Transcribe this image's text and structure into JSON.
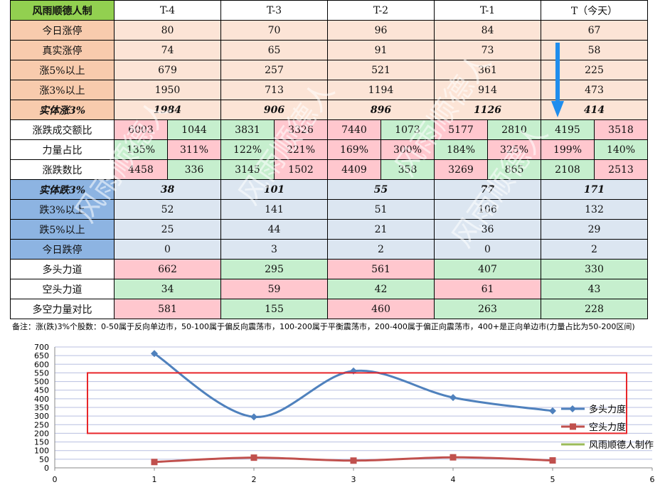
{
  "table": {
    "corner": "风雨顺德人制",
    "headers": [
      "T-4",
      "T-3",
      "T-2",
      "T-1",
      "T（今天）"
    ],
    "up_rows": [
      {
        "label": "今日涨停",
        "values": [
          "80",
          "70",
          "96",
          "84",
          "67"
        ]
      },
      {
        "label": "真实涨停",
        "values": [
          "74",
          "65",
          "91",
          "73",
          "58"
        ]
      },
      {
        "label": "涨5%以上",
        "values": [
          "679",
          "257",
          "521",
          "361",
          "225"
        ]
      },
      {
        "label": "涨3%以上",
        "values": [
          "1950",
          "713",
          "1194",
          "914",
          "473"
        ]
      }
    ],
    "solid_up": {
      "label": "实体涨3%",
      "values": [
        "1984",
        "906",
        "896",
        "1126",
        "414"
      ]
    },
    "pair_rows": [
      {
        "label": "涨跌成交额比",
        "values": [
          [
            "6003",
            "1044"
          ],
          [
            "3831",
            "3326"
          ],
          [
            "7440",
            "1073"
          ],
          [
            "5177",
            "2810"
          ],
          [
            "4195",
            "3518"
          ]
        ]
      },
      {
        "label": "力量占比",
        "values": [
          [
            "135%",
            "311%"
          ],
          [
            "122%",
            "221%"
          ],
          [
            "169%",
            "300%"
          ],
          [
            "184%",
            "325%"
          ],
          [
            "199%",
            "140%"
          ]
        ]
      },
      {
        "label": "涨跌数比",
        "values": [
          [
            "4458",
            "336"
          ],
          [
            "3145",
            "1502"
          ],
          [
            "4409",
            "358"
          ],
          [
            "3269",
            "865"
          ],
          [
            "2108",
            "2513"
          ]
        ]
      }
    ],
    "solid_down": {
      "label": "实体跌3%",
      "values": [
        "38",
        "101",
        "55",
        "77",
        "171"
      ]
    },
    "down_rows": [
      {
        "label": "跌3%以上",
        "values": [
          "52",
          "141",
          "51",
          "106",
          "132"
        ]
      },
      {
        "label": "跌5%以上",
        "values": [
          "25",
          "44",
          "21",
          "36",
          "29"
        ]
      },
      {
        "label": "今日跌停",
        "values": [
          "0",
          "3",
          "2",
          "0",
          "2"
        ]
      }
    ],
    "force_rows": [
      {
        "label": "多头力道",
        "values": [
          "662",
          "295",
          "561",
          "407",
          "330"
        ]
      },
      {
        "label": "空头力道",
        "values": [
          "34",
          "59",
          "42",
          "61",
          "43"
        ]
      },
      {
        "label": "多空力量对比",
        "values": [
          "581",
          "155",
          "460",
          "263",
          "228"
        ]
      }
    ]
  },
  "note": "备注：涨(跌)3%个股数：0-50属于反向单边市，50-100属于偏反向震荡市，100-200属于平衡震荡市，200-400属于偏正向震荡市，400+是正向单边市(力量占比为50-200区间)",
  "watermark": "风雨顺德人",
  "colors": {
    "bull": "#4f81bd",
    "bear": "#c0504d",
    "maker": "#9bbb59",
    "highlight": "#e8262a",
    "arrow": "#1f8ded"
  },
  "chart_data": {
    "type": "line",
    "x_ticks": [
      0,
      1,
      2,
      3,
      4,
      5,
      6
    ],
    "y_ticks": [
      0,
      50,
      100,
      150,
      200,
      250,
      300,
      350,
      400,
      450,
      500,
      550,
      600,
      650,
      700
    ],
    "xlim": [
      0,
      6
    ],
    "ylim": [
      0,
      700
    ],
    "grid": "horizontal",
    "legend_position": "right",
    "series": [
      {
        "name": "多头力度",
        "x": [
          1,
          2,
          3,
          4,
          5
        ],
        "values": [
          662,
          295,
          561,
          407,
          330
        ],
        "color": "#4f81bd",
        "marker": "diamond"
      },
      {
        "name": "空头力度",
        "x": [
          1,
          2,
          3,
          4,
          5
        ],
        "values": [
          34,
          59,
          42,
          61,
          43
        ],
        "color": "#c0504d",
        "marker": "square"
      },
      {
        "name": "风雨顺德人制作",
        "x": [],
        "values": [],
        "color": "#9bbb59",
        "marker": "none"
      }
    ],
    "highlight_band": [
      200,
      550
    ]
  }
}
